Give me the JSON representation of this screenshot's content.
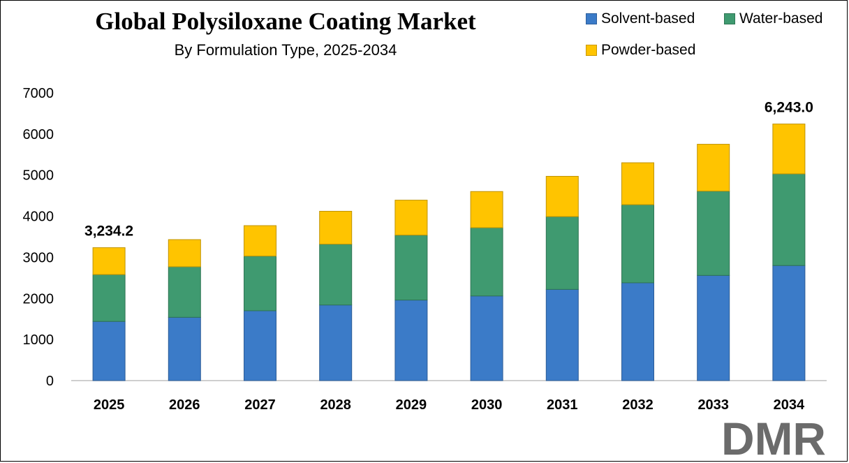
{
  "title": "Global Polysiloxane Coating Market",
  "subtitle": "By Formulation Type, 2025-2034",
  "logo_text": "DMR",
  "chart_data": {
    "type": "bar",
    "stacked": true,
    "categories": [
      "2025",
      "2026",
      "2027",
      "2028",
      "2029",
      "2030",
      "2031",
      "2032",
      "2033",
      "2034"
    ],
    "series": [
      {
        "name": "Solvent-based",
        "color": "#3b7bc8",
        "values": [
          1440,
          1540,
          1700,
          1840,
          1960,
          2060,
          2220,
          2380,
          2560,
          2800
        ]
      },
      {
        "name": "Water-based",
        "color": "#3f9a70",
        "values": [
          1140,
          1230,
          1330,
          1480,
          1580,
          1660,
          1770,
          1900,
          2050,
          2230
        ]
      },
      {
        "name": "Powder-based",
        "color": "#ffc400",
        "values": [
          654.2,
          660,
          740,
          800,
          850,
          880,
          980,
          1020,
          1140,
          1213
        ]
      }
    ],
    "total_labels": [
      {
        "category": "2025",
        "text": "3,234.2"
      },
      {
        "category": "2034",
        "text": "6,243.0"
      }
    ],
    "ylim": [
      0,
      7000
    ],
    "yticks": [
      "0",
      "1000",
      "2000",
      "3000",
      "4000",
      "5000",
      "6000",
      "7000"
    ],
    "grid": false,
    "legend_position": "top-right",
    "xlabel": "",
    "ylabel": ""
  }
}
